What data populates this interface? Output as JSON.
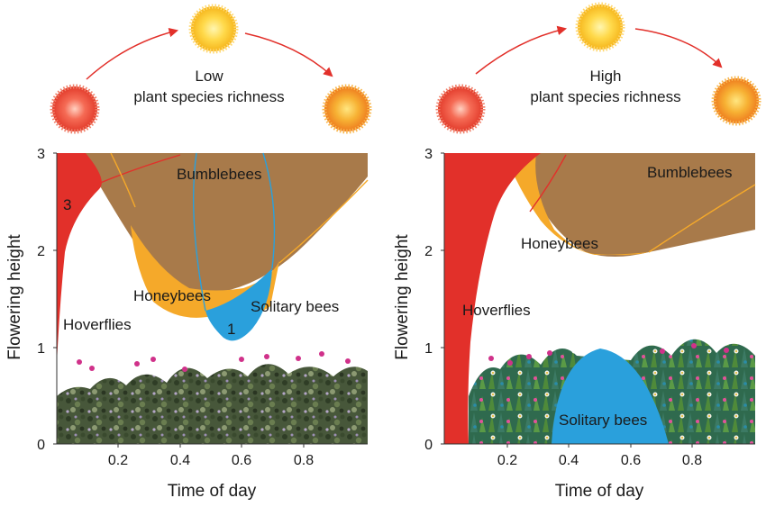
{
  "panels": [
    {
      "caption_line1": "Low",
      "caption_line2": "plant species richness",
      "ylabel": "Flowering height",
      "xlabel": "Time of day",
      "xticks": [
        "0.2",
        "0.4",
        "0.6",
        "0.8"
      ],
      "yticks": [
        "0",
        "1",
        "2",
        "3"
      ],
      "regions": {
        "bumblebees": "Bumblebees",
        "honeybees": "Honeybees",
        "solitary": "Solitary bees",
        "hoverflies": "Hoverflies",
        "mark3": "3",
        "mark1": "1"
      }
    },
    {
      "caption_line1": "High",
      "caption_line2": "plant species richness",
      "ylabel": "Flowering height",
      "xlabel": "Time of day",
      "xticks": [
        "0.2",
        "0.4",
        "0.6",
        "0.8"
      ],
      "yticks": [
        "0",
        "1",
        "2",
        "3"
      ],
      "regions": {
        "bumblebees": "Bumblebees",
        "honeybees": "Honeybees",
        "solitary": "Solitary bees",
        "hoverflies": "Hoverflies"
      }
    }
  ],
  "colors": {
    "hoverflies": "#e2302a",
    "bumblebees": "#a87a4a",
    "honeybees": "#f5a92a",
    "solitary": "#2aa0dc",
    "arrow": "#e2302a"
  }
}
